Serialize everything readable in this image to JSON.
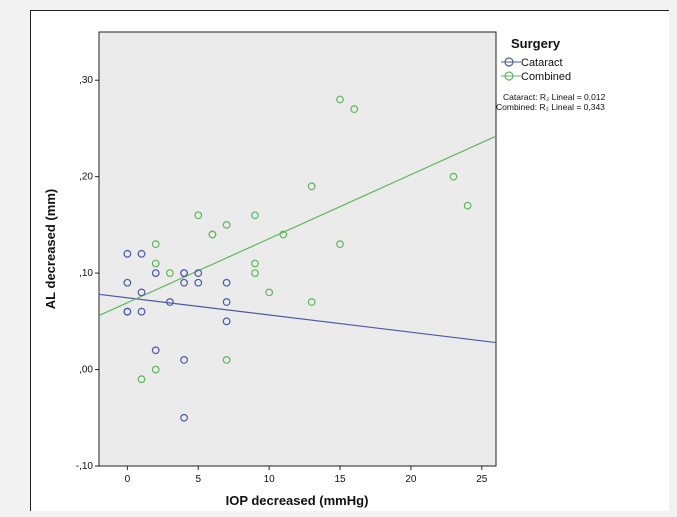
{
  "chart_data": {
    "type": "scatter",
    "xlabel": "IOP decreased (mmHg)",
    "ylabel": "AL decreased (mm)",
    "xlim": [
      -2,
      26
    ],
    "ylim": [
      -0.1,
      0.35
    ],
    "x_ticks": [
      0,
      5,
      10,
      15,
      20,
      25
    ],
    "x_tick_labels": [
      "0",
      "5",
      "10",
      "15",
      "20",
      "25"
    ],
    "y_ticks": [
      -0.1,
      0.0,
      0.1,
      0.2,
      0.3
    ],
    "y_tick_labels": [
      "-,10",
      ",00",
      ",10",
      ",20",
      ",30"
    ],
    "grid": false,
    "legend": {
      "title": "Surgery",
      "placement": "right",
      "entries": [
        "Cataract",
        "Combined"
      ]
    },
    "annotations": [
      "Cataract: R₂ Lineal = 0,012",
      "Combined: R₂ Lineal = 0,343"
    ],
    "series": [
      {
        "name": "Cataract",
        "color": "#4b5aa8",
        "points": [
          [
            0,
            0.12
          ],
          [
            0,
            0.09
          ],
          [
            0,
            0.06
          ],
          [
            0,
            0.06
          ],
          [
            1,
            0.12
          ],
          [
            1,
            0.08
          ],
          [
            1,
            0.06
          ],
          [
            2,
            0.1
          ],
          [
            2,
            0.02
          ],
          [
            3,
            0.07
          ],
          [
            4,
            0.1
          ],
          [
            4,
            0.1
          ],
          [
            4,
            0.09
          ],
          [
            4,
            0.01
          ],
          [
            4,
            -0.05
          ],
          [
            5,
            0.1
          ],
          [
            5,
            0.09
          ],
          [
            7,
            0.09
          ],
          [
            7,
            0.07
          ],
          [
            7,
            0.05
          ]
        ],
        "fit_line": [
          [
            -2,
            0.078
          ],
          [
            26,
            0.028
          ]
        ]
      },
      {
        "name": "Combined",
        "color": "#5cb85c",
        "points": [
          [
            1,
            -0.01
          ],
          [
            2,
            0.13
          ],
          [
            2,
            0.11
          ],
          [
            2,
            0.0
          ],
          [
            3,
            0.1
          ],
          [
            5,
            0.16
          ],
          [
            6,
            0.14
          ],
          [
            6,
            0.14
          ],
          [
            7,
            0.15
          ],
          [
            7,
            0.01
          ],
          [
            9,
            0.16
          ],
          [
            9,
            0.11
          ],
          [
            9,
            0.1
          ],
          [
            10,
            0.08
          ],
          [
            11,
            0.14
          ],
          [
            13,
            0.19
          ],
          [
            13,
            0.07
          ],
          [
            15,
            0.28
          ],
          [
            15,
            0.13
          ],
          [
            16,
            0.27
          ],
          [
            23,
            0.2
          ],
          [
            24,
            0.17
          ]
        ],
        "fit_line": [
          [
            -2,
            0.056
          ],
          [
            26,
            0.242
          ]
        ]
      }
    ]
  }
}
